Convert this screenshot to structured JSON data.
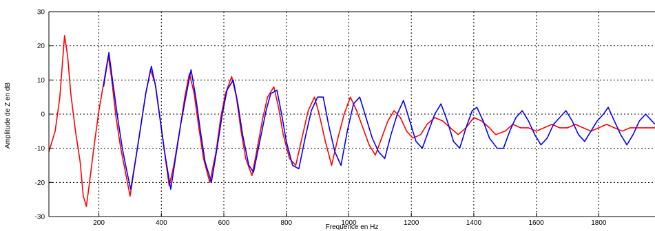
{
  "chart_data": {
    "type": "line",
    "title": "",
    "xlabel": "Frequence en Hz",
    "ylabel": "Amplitude de Z en dB",
    "xlim": [
      40,
      1980
    ],
    "ylim": [
      -30,
      30
    ],
    "xticks": [
      200,
      400,
      600,
      800,
      1000,
      1200,
      1400,
      1600,
      1800
    ],
    "yticks": [
      -30,
      -20,
      -10,
      0,
      10,
      20,
      30
    ],
    "grid": true,
    "legend": "none",
    "series": [
      {
        "color": "#ff0000",
        "points": [
          [
            40,
            -11
          ],
          [
            60,
            -5
          ],
          [
            75,
            5
          ],
          [
            90,
            23
          ],
          [
            100,
            17
          ],
          [
            110,
            6
          ],
          [
            125,
            -5
          ],
          [
            140,
            -14
          ],
          [
            150,
            -24
          ],
          [
            160,
            -27
          ],
          [
            170,
            -20
          ],
          [
            185,
            -9
          ],
          [
            200,
            1
          ],
          [
            215,
            9
          ],
          [
            230,
            17
          ],
          [
            240,
            11
          ],
          [
            255,
            -1
          ],
          [
            270,
            -10
          ],
          [
            285,
            -17
          ],
          [
            300,
            -24
          ],
          [
            315,
            -15
          ],
          [
            335,
            -3
          ],
          [
            350,
            6
          ],
          [
            365,
            13
          ],
          [
            380,
            9
          ],
          [
            395,
            -1
          ],
          [
            410,
            -11
          ],
          [
            425,
            -21
          ],
          [
            440,
            -15
          ],
          [
            460,
            -4
          ],
          [
            475,
            5
          ],
          [
            490,
            12
          ],
          [
            505,
            6
          ],
          [
            520,
            -4
          ],
          [
            535,
            -13
          ],
          [
            555,
            -20
          ],
          [
            575,
            -11
          ],
          [
            590,
            -1
          ],
          [
            605,
            6
          ],
          [
            625,
            11
          ],
          [
            640,
            5
          ],
          [
            655,
            -5
          ],
          [
            670,
            -13
          ],
          [
            690,
            -18
          ],
          [
            705,
            -11
          ],
          [
            725,
            -1
          ],
          [
            740,
            5
          ],
          [
            760,
            8
          ],
          [
            775,
            2
          ],
          [
            790,
            -6
          ],
          [
            810,
            -13
          ],
          [
            830,
            -15
          ],
          [
            850,
            -7
          ],
          [
            870,
            1
          ],
          [
            890,
            5
          ],
          [
            905,
            0
          ],
          [
            925,
            -8
          ],
          [
            945,
            -15
          ],
          [
            965,
            -7
          ],
          [
            985,
            0
          ],
          [
            1005,
            5
          ],
          [
            1025,
            1
          ],
          [
            1045,
            -4
          ],
          [
            1065,
            -9
          ],
          [
            1085,
            -12
          ],
          [
            1105,
            -7
          ],
          [
            1125,
            -2
          ],
          [
            1145,
            1
          ],
          [
            1165,
            -1
          ],
          [
            1185,
            -5
          ],
          [
            1205,
            -7
          ],
          [
            1230,
            -6
          ],
          [
            1250,
            -3
          ],
          [
            1275,
            -1
          ],
          [
            1300,
            -2
          ],
          [
            1325,
            -4
          ],
          [
            1350,
            -6
          ],
          [
            1375,
            -4
          ],
          [
            1400,
            -1
          ],
          [
            1425,
            -2
          ],
          [
            1450,
            -4
          ],
          [
            1470,
            -6
          ],
          [
            1500,
            -5
          ],
          [
            1525,
            -3
          ],
          [
            1550,
            -4
          ],
          [
            1575,
            -4
          ],
          [
            1600,
            -5
          ],
          [
            1625,
            -4
          ],
          [
            1650,
            -3
          ],
          [
            1675,
            -4
          ],
          [
            1700,
            -4
          ],
          [
            1725,
            -3
          ],
          [
            1750,
            -4
          ],
          [
            1775,
            -5
          ],
          [
            1800,
            -4
          ],
          [
            1825,
            -3
          ],
          [
            1850,
            -4
          ],
          [
            1875,
            -5
          ],
          [
            1900,
            -4
          ],
          [
            1925,
            -4
          ],
          [
            1950,
            -4
          ],
          [
            1980,
            -4
          ]
        ]
      },
      {
        "color": "#0000ff",
        "points": [
          [
            215,
            8
          ],
          [
            232,
            18
          ],
          [
            245,
            9
          ],
          [
            260,
            -1
          ],
          [
            275,
            -10
          ],
          [
            290,
            -17
          ],
          [
            302,
            -22
          ],
          [
            318,
            -13
          ],
          [
            335,
            -3
          ],
          [
            350,
            6
          ],
          [
            368,
            14
          ],
          [
            382,
            8
          ],
          [
            397,
            -2
          ],
          [
            412,
            -12
          ],
          [
            430,
            -22
          ],
          [
            445,
            -13
          ],
          [
            462,
            -3
          ],
          [
            478,
            5
          ],
          [
            495,
            13
          ],
          [
            510,
            5
          ],
          [
            525,
            -5
          ],
          [
            540,
            -14
          ],
          [
            560,
            -20
          ],
          [
            580,
            -9
          ],
          [
            595,
            0
          ],
          [
            610,
            7
          ],
          [
            630,
            10
          ],
          [
            645,
            3
          ],
          [
            660,
            -6
          ],
          [
            680,
            -15
          ],
          [
            695,
            -17
          ],
          [
            715,
            -8
          ],
          [
            735,
            1
          ],
          [
            750,
            6
          ],
          [
            770,
            7
          ],
          [
            785,
            0
          ],
          [
            800,
            -8
          ],
          [
            820,
            -15
          ],
          [
            840,
            -16
          ],
          [
            860,
            -7
          ],
          [
            880,
            1
          ],
          [
            900,
            5
          ],
          [
            918,
            5
          ],
          [
            935,
            -3
          ],
          [
            955,
            -11
          ],
          [
            975,
            -15
          ],
          [
            995,
            -5
          ],
          [
            1015,
            3
          ],
          [
            1035,
            5
          ],
          [
            1055,
            -1
          ],
          [
            1075,
            -7
          ],
          [
            1095,
            -11
          ],
          [
            1115,
            -13
          ],
          [
            1135,
            -6
          ],
          [
            1155,
            0
          ],
          [
            1175,
            4
          ],
          [
            1195,
            -2
          ],
          [
            1215,
            -8
          ],
          [
            1235,
            -10
          ],
          [
            1255,
            -5
          ],
          [
            1275,
            0
          ],
          [
            1295,
            3
          ],
          [
            1315,
            -2
          ],
          [
            1335,
            -8
          ],
          [
            1355,
            -10
          ],
          [
            1375,
            -4
          ],
          [
            1395,
            1
          ],
          [
            1410,
            2
          ],
          [
            1430,
            -2
          ],
          [
            1450,
            -7
          ],
          [
            1475,
            -10
          ],
          [
            1495,
            -10
          ],
          [
            1515,
            -5
          ],
          [
            1535,
            -1
          ],
          [
            1555,
            1
          ],
          [
            1575,
            -2
          ],
          [
            1595,
            -6
          ],
          [
            1615,
            -9
          ],
          [
            1635,
            -7
          ],
          [
            1655,
            -3
          ],
          [
            1675,
            -1
          ],
          [
            1695,
            1
          ],
          [
            1715,
            -2
          ],
          [
            1735,
            -6
          ],
          [
            1755,
            -8
          ],
          [
            1775,
            -5
          ],
          [
            1795,
            -2
          ],
          [
            1815,
            0
          ],
          [
            1830,
            2
          ],
          [
            1850,
            -2
          ],
          [
            1870,
            -6
          ],
          [
            1890,
            -9
          ],
          [
            1910,
            -6
          ],
          [
            1930,
            -2
          ],
          [
            1950,
            0
          ],
          [
            1970,
            -2
          ],
          [
            1980,
            -3
          ]
        ]
      }
    ]
  }
}
